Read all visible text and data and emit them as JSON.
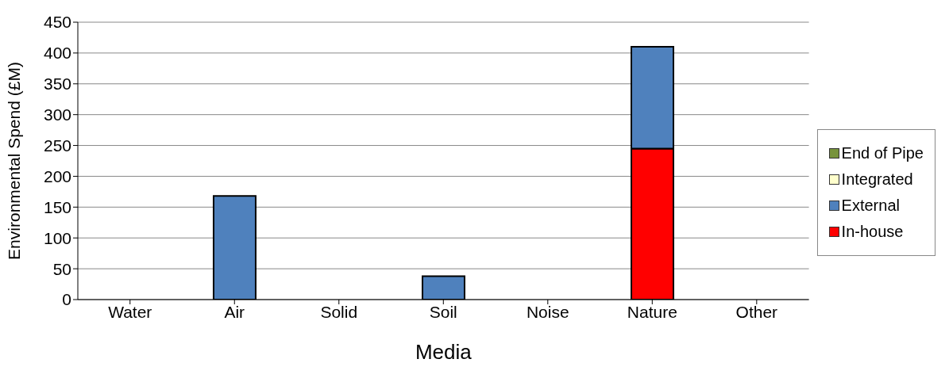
{
  "chart_data": {
    "type": "bar",
    "xlabel": "Media",
    "ylabel": "Environmental Spend (£M)",
    "categories": [
      "Water",
      "Air",
      "Solid",
      "Soil",
      "Noise",
      "Nature",
      "Other"
    ],
    "stacked": true,
    "series": [
      {
        "name": "In-house",
        "color": "#ff0000",
        "values": [
          0,
          0,
          0,
          0,
          0,
          245,
          0
        ]
      },
      {
        "name": "External",
        "color": "#4f81bd",
        "values": [
          0,
          168,
          0,
          38,
          0,
          165,
          0
        ]
      },
      {
        "name": "Integrated",
        "color": "#ffffcc",
        "values": [
          0,
          0,
          0,
          0,
          0,
          0,
          0
        ]
      },
      {
        "name": "End of Pipe",
        "color": "#77933c",
        "values": [
          0,
          0,
          0,
          0,
          0,
          0,
          0
        ]
      }
    ],
    "ylim": [
      0,
      450
    ],
    "yticks": [
      0,
      50,
      100,
      150,
      200,
      250,
      300,
      350,
      400,
      450
    ],
    "grid": "y",
    "legend": "right"
  }
}
